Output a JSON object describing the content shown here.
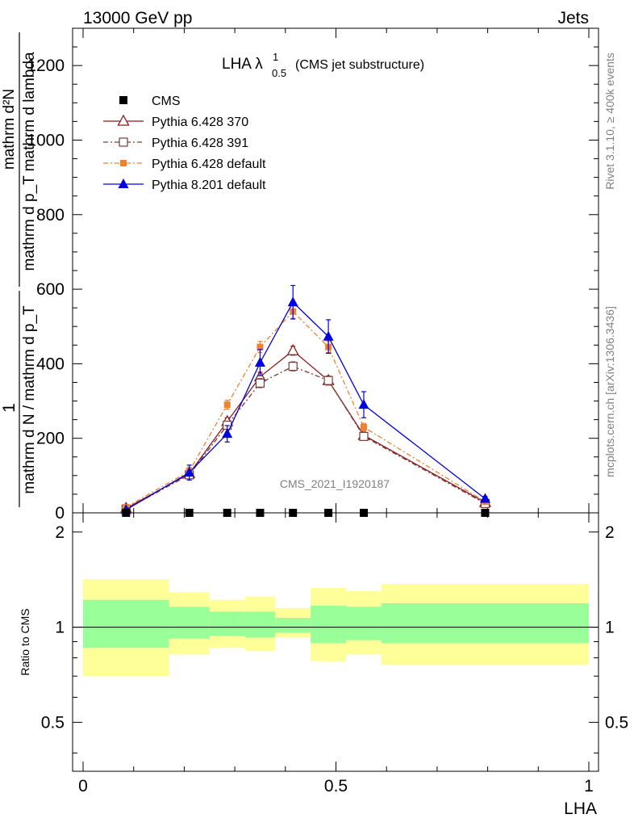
{
  "header": {
    "energy_label": "13000 GeV pp",
    "category": "Jets"
  },
  "chart_data": {
    "type": "line",
    "title_main": "LHA λ",
    "title_sup": "1",
    "title_sub": "0.5",
    "title_suffix": "(CMS jet substructure)",
    "watermark": "CMS_2021_I1920187",
    "side_label_top": "Rivet 3.1.10, ≥ 400k events",
    "side_label_bottom": "mcplots.cern.ch [arXiv:1306.3436]",
    "ylabel_numerator": "mathrm d²N",
    "ylabel_denominator": "mathrm d p_T mathrm d lambda",
    "ylabel_prefix_num": "1",
    "ylabel_prefix_den": "mathrm d N / mathrm d p_T",
    "xlabel": "LHA",
    "ratio_ylabel": "Ratio to CMS",
    "xlim": [
      -0.05,
      1.02
    ],
    "ylim": [
      0,
      1300
    ],
    "ratio_ylim": [
      0.35,
      2.3
    ],
    "x_ticks": [
      0,
      0.5,
      1
    ],
    "x_tick_labels": [
      "0",
      "0.5",
      "1"
    ],
    "y_ticks": [
      0,
      200,
      400,
      600,
      800,
      1000,
      1200
    ],
    "y_tick_labels": [
      "0",
      "200",
      "400",
      "600",
      "800",
      "1000",
      "1200"
    ],
    "ratio_ticks": [
      0.5,
      1,
      2
    ],
    "ratio_tick_labels": [
      "0.5",
      "1",
      "2"
    ],
    "series": [
      {
        "name": "CMS",
        "color": "#000000",
        "marker": "filled-square",
        "dash": "",
        "x": [
          0.085,
          0.21,
          0.285,
          0.35,
          0.415,
          0.485,
          0.555,
          0.795
        ],
        "y": [
          0,
          0,
          0,
          0,
          0,
          0,
          0,
          0
        ],
        "err": [
          0,
          0,
          0,
          0,
          0,
          0,
          0,
          0
        ]
      },
      {
        "name": "Pythia 6.428 370",
        "color": "#8b1a1a",
        "marker": "open-triangle",
        "dash": "",
        "x": [
          0.085,
          0.21,
          0.285,
          0.35,
          0.415,
          0.485,
          0.555,
          0.795
        ],
        "y": [
          12,
          105,
          245,
          365,
          435,
          355,
          208,
          28
        ],
        "err": [
          4,
          8,
          10,
          12,
          12,
          12,
          8,
          3
        ]
      },
      {
        "name": "Pythia 6.428 391",
        "color": "#7a3b3b",
        "marker": "open-square",
        "dash": "6,3,2,3",
        "x": [
          0.085,
          0.21,
          0.285,
          0.35,
          0.415,
          0.485,
          0.555,
          0.795
        ],
        "y": [
          10,
          102,
          235,
          348,
          393,
          355,
          205,
          25
        ],
        "err": [
          4,
          8,
          10,
          12,
          12,
          12,
          8,
          3
        ]
      },
      {
        "name": "Pythia 6.428 default",
        "color": "#f08030",
        "marker": "filled-square-small",
        "dash": "6,3,2,3",
        "x": [
          0.085,
          0.21,
          0.285,
          0.35,
          0.415,
          0.485,
          0.555,
          0.795
        ],
        "y": [
          15,
          112,
          290,
          445,
          540,
          445,
          230,
          30
        ],
        "err": [
          4,
          10,
          12,
          15,
          18,
          15,
          10,
          3
        ]
      },
      {
        "name": "Pythia 8.201 default",
        "color": "#0000e0",
        "marker": "filled-triangle",
        "dash": "",
        "x": [
          0.085,
          0.21,
          0.285,
          0.35,
          0.415,
          0.485,
          0.555,
          0.795
        ],
        "y": [
          8,
          108,
          212,
          403,
          565,
          473,
          290,
          38
        ],
        "err": [
          4,
          20,
          22,
          35,
          45,
          45,
          35,
          6
        ]
      }
    ],
    "ratio_bands": [
      {
        "x0": 0.0,
        "x1": 0.17,
        "inner": [
          0.86,
          1.22
        ],
        "outer": [
          0.7,
          1.42
        ]
      },
      {
        "x0": 0.17,
        "x1": 0.25,
        "inner": [
          0.92,
          1.16
        ],
        "outer": [
          0.82,
          1.29
        ]
      },
      {
        "x0": 0.25,
        "x1": 0.32,
        "inner": [
          0.94,
          1.12
        ],
        "outer": [
          0.86,
          1.22
        ]
      },
      {
        "x0": 0.32,
        "x1": 0.38,
        "inner": [
          0.93,
          1.12
        ],
        "outer": [
          0.84,
          1.25
        ]
      },
      {
        "x0": 0.38,
        "x1": 0.45,
        "inner": [
          0.96,
          1.07
        ],
        "outer": [
          0.93,
          1.15
        ]
      },
      {
        "x0": 0.45,
        "x1": 0.52,
        "inner": [
          0.89,
          1.17
        ],
        "outer": [
          0.78,
          1.33
        ]
      },
      {
        "x0": 0.52,
        "x1": 0.59,
        "inner": [
          0.91,
          1.16
        ],
        "outer": [
          0.82,
          1.3
        ]
      },
      {
        "x0": 0.59,
        "x1": 1.0,
        "inner": [
          0.89,
          1.19
        ],
        "outer": [
          0.76,
          1.37
        ]
      }
    ]
  }
}
